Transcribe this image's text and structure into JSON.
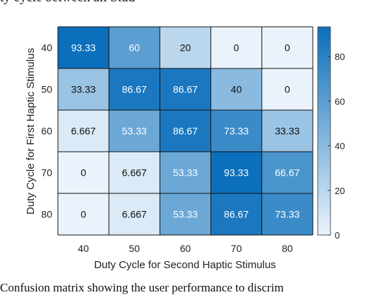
{
  "text_above": "ty cycle between all Stud",
  "text_below": "Confusion matrix showing the user performance to discrim",
  "chart_data": {
    "type": "heatmap",
    "title": "",
    "xlabel": "Duty Cycle for Second Haptic Stimulus",
    "ylabel": "Duty Cycle for First Haptic Stimulus",
    "x_categories": [
      "40",
      "50",
      "60",
      "70",
      "80"
    ],
    "y_categories": [
      "40",
      "50",
      "60",
      "70",
      "80"
    ],
    "value_labels": [
      [
        "93.33",
        "60",
        "20",
        "0",
        "0"
      ],
      [
        "33.33",
        "86.67",
        "86.67",
        "40",
        "0"
      ],
      [
        "6.667",
        "53.33",
        "86.67",
        "73.33",
        "33.33"
      ],
      [
        "0",
        "6.667",
        "53.33",
        "93.33",
        "66.67"
      ],
      [
        "0",
        "6.667",
        "53.33",
        "86.67",
        "73.33"
      ]
    ],
    "values": [
      [
        93.33,
        60,
        20,
        0,
        0
      ],
      [
        33.33,
        86.67,
        86.67,
        40,
        0
      ],
      [
        6.667,
        53.33,
        86.67,
        73.33,
        33.33
      ],
      [
        0,
        6.667,
        53.33,
        93.33,
        66.67
      ],
      [
        0,
        6.667,
        53.33,
        86.67,
        73.33
      ]
    ],
    "colorbar": {
      "min": 0,
      "max": 93.33,
      "ticks": [
        "0",
        "20",
        "40",
        "60",
        "80"
      ]
    },
    "colormap": {
      "low": "#eaf3fb",
      "high": "#0b6fbb"
    },
    "grid": "black cell borders",
    "legend": "colorbar at right"
  }
}
